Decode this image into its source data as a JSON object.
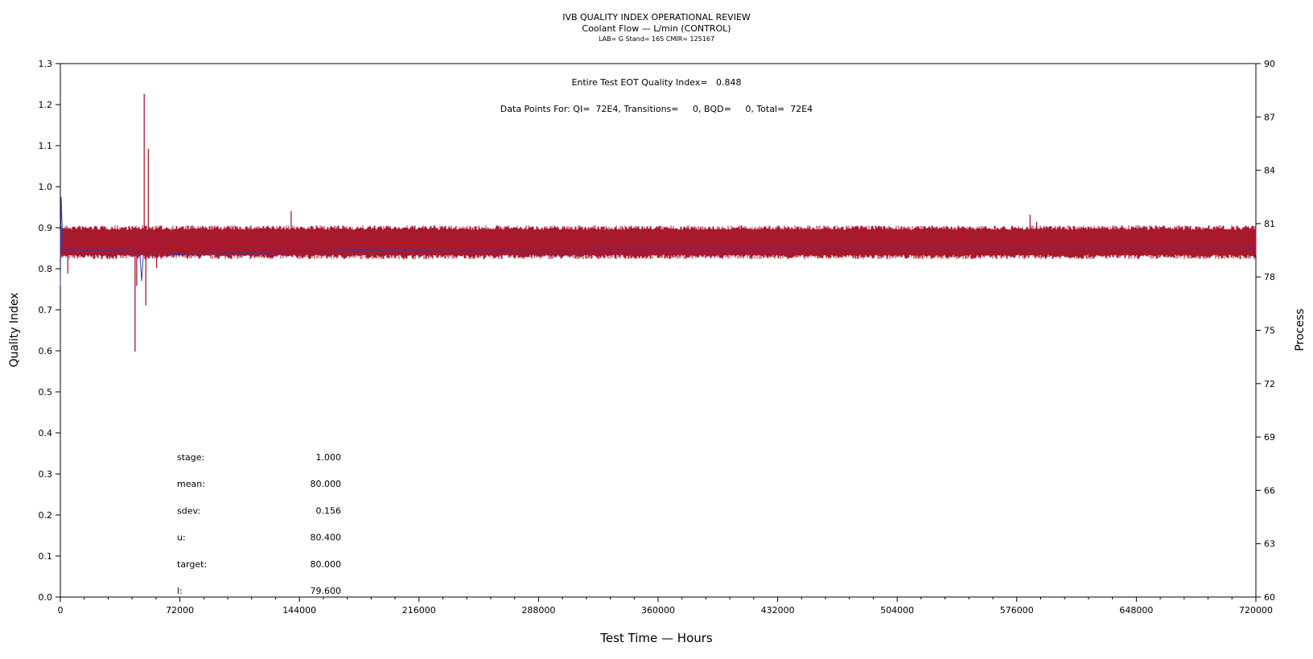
{
  "header": {
    "title": "IVB QUALITY INDEX OPERATIONAL REVIEW",
    "subtitle": "Coolant Flow — L/min (CONTROL)",
    "info": "LAB= G Stand= 165 CMIR= 125167"
  },
  "annotations": {
    "eot_quality_index": "Entire Test EOT Quality Index=   0.848",
    "data_points": "Data Points For: QI=  72E4, Transitions=     0, BQD=     0, Total=  72E4"
  },
  "stats": [
    {
      "label": "stage:",
      "value": "1.000"
    },
    {
      "label": "mean:",
      "value": "80.000"
    },
    {
      "label": "sdev:",
      "value": "0.156"
    },
    {
      "label": "u:",
      "value": "80.400"
    },
    {
      "label": "target:",
      "value": "80.000"
    },
    {
      "label": "l:",
      "value": "79.600"
    }
  ],
  "colors": {
    "process_series": "#a8192e",
    "qi_series": "#3a3aa0",
    "axis": "#000000"
  },
  "chart_data": {
    "type": "line",
    "xlabel": "Test Time — Hours",
    "ylabel_left": "Quality Index",
    "ylabel_right": "Process",
    "xlim": [
      0,
      720000
    ],
    "ylim_left": [
      0,
      1.3
    ],
    "ylim_right": [
      60,
      90
    ],
    "x_ticks": [
      "0",
      "72000",
      "144000",
      "216000",
      "288000",
      "360000",
      "432000",
      "504000",
      "576000",
      "648000",
      "720000"
    ],
    "x_tick_values": [
      0,
      72000,
      144000,
      216000,
      288000,
      360000,
      432000,
      504000,
      576000,
      648000,
      720000
    ],
    "y_left_ticks": [
      "0.0",
      "0.1",
      "0.2",
      "0.3",
      "0.4",
      "0.5",
      "0.6",
      "0.7",
      "0.8",
      "0.9",
      "1.0",
      "1.1",
      "1.2",
      "1.3"
    ],
    "y_left_tick_values": [
      0,
      0.1,
      0.2,
      0.3,
      0.4,
      0.5,
      0.6,
      0.7,
      0.8,
      0.9,
      1.0,
      1.1,
      1.2,
      1.3
    ],
    "y_right_ticks": [
      "60",
      "63",
      "66",
      "69",
      "72",
      "75",
      "78",
      "81",
      "84",
      "87",
      "90"
    ],
    "y_right_tick_values": [
      60,
      63,
      66,
      69,
      72,
      75,
      78,
      81,
      84,
      87,
      90
    ],
    "grid": false,
    "series": [
      {
        "axis": "left",
        "x": [
          0,
          500,
          1500,
          3000,
          10000,
          20000,
          40000,
          47000,
          48000,
          49000,
          50000,
          52000,
          60000,
          72000,
          90000,
          110000,
          144000,
          200000,
          288000,
          360000,
          432000,
          504000,
          576000,
          648000,
          720000
        ],
        "y": [
          0.76,
          0.975,
          0.85,
          0.845,
          0.845,
          0.845,
          0.845,
          0.84,
          0.83,
          0.77,
          0.835,
          0.832,
          0.832,
          0.835,
          0.838,
          0.84,
          0.842,
          0.845,
          0.846,
          0.847,
          0.847,
          0.848,
          0.848,
          0.848,
          0.848
        ]
      },
      {
        "axis": "right",
        "band": [
          79.0,
          80.9
        ],
        "spikes_x": [
          45000,
          50500,
          51500,
          53000,
          139000,
          584000,
          588000
        ],
        "spikes_y": [
          73.8,
          88.3,
          76.4,
          85.2,
          81.7,
          81.5,
          81.1
        ],
        "dips_x": [
          4500,
          46000,
          58000
        ],
        "dips_y": [
          78.2,
          77.5,
          78.5
        ]
      }
    ]
  }
}
